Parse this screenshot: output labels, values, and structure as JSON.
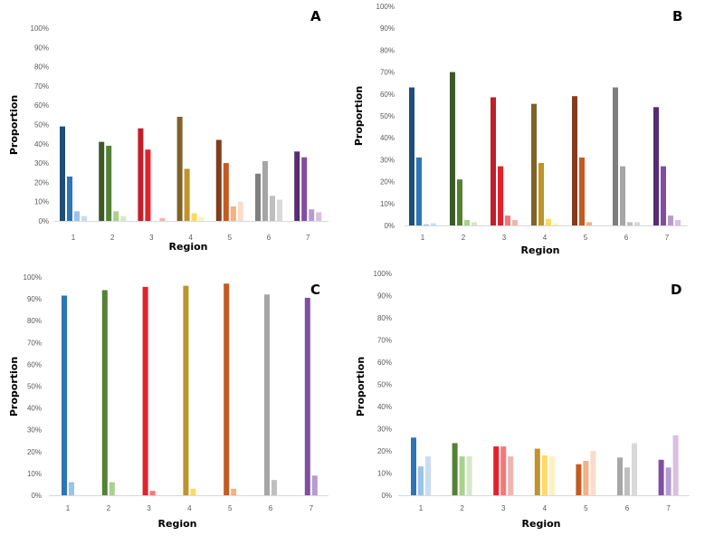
{
  "chart_data": [
    {
      "type": "bar",
      "panel_label": "A",
      "xlabel": "Region",
      "ylabel": "Proportion",
      "ylim": [
        0,
        100
      ],
      "yticks": [
        "0%",
        "10%",
        "20%",
        "30%",
        "40%",
        "50%",
        "60%",
        "70%",
        "80%",
        "90%",
        "100%"
      ],
      "categories": [
        "1",
        "2",
        "3",
        "4",
        "5",
        "6",
        "7"
      ],
      "values": [
        [
          49,
          23,
          5,
          2.5
        ],
        [
          41,
          39,
          5,
          2.5
        ],
        [
          48,
          37,
          0,
          1.5
        ],
        [
          54,
          27,
          4,
          2
        ],
        [
          42,
          30,
          7.5,
          10
        ],
        [
          24.5,
          31,
          13,
          11
        ],
        [
          36,
          33,
          6,
          4.5
        ]
      ],
      "shade_levels": [
        0,
        1,
        2,
        3
      ],
      "grid": false
    },
    {
      "type": "bar",
      "panel_label": "B",
      "xlabel": "Region",
      "ylabel": "Proportion",
      "ylim": [
        0,
        100
      ],
      "yticks": [
        "0%",
        "10%",
        "20%",
        "30%",
        "40%",
        "50%",
        "60%",
        "70%",
        "80%",
        "90%",
        "100%"
      ],
      "categories": [
        "1",
        "2",
        "3",
        "4",
        "5",
        "6",
        "7"
      ],
      "values": [
        [
          63,
          31,
          0.5,
          1
        ],
        [
          70,
          21,
          2.5,
          1.5
        ],
        [
          58.5,
          27,
          4.5,
          2.5
        ],
        [
          55.5,
          28.5,
          3,
          1
        ],
        [
          59,
          31,
          1.5,
          0
        ],
        [
          63,
          27,
          1.5,
          1.5
        ],
        [
          54,
          27,
          4.5,
          2.5
        ]
      ],
      "shade_levels": [
        0,
        1,
        2,
        3
      ],
      "grid": false
    },
    {
      "type": "bar",
      "panel_label": "C",
      "xlabel": "Region",
      "ylabel": "Proportion",
      "ylim": [
        0,
        100
      ],
      "yticks": [
        "0%",
        "10%",
        "20%",
        "30%",
        "40%",
        "50%",
        "60%",
        "70%",
        "80%",
        "90%",
        "100%"
      ],
      "categories": [
        "1",
        "2",
        "3",
        "4",
        "5",
        "6",
        "7"
      ],
      "values": [
        [
          91.5,
          6
        ],
        [
          94,
          6
        ],
        [
          95.5,
          2
        ],
        [
          96,
          3
        ],
        [
          97,
          3
        ],
        [
          92,
          7
        ],
        [
          90.5,
          9
        ]
      ],
      "shade_levels": [
        1,
        2
      ],
      "grid": false
    },
    {
      "type": "bar",
      "panel_label": "D",
      "xlabel": "Region",
      "ylabel": "Proportion",
      "ylim": [
        0,
        100
      ],
      "yticks": [
        "0%",
        "10%",
        "20%",
        "30%",
        "40%",
        "50%",
        "60%",
        "70%",
        "80%",
        "90%",
        "100%"
      ],
      "categories": [
        "1",
        "2",
        "3",
        "4",
        "5",
        "6",
        "7"
      ],
      "values": [
        [
          26,
          13,
          17.5
        ],
        [
          23.5,
          17.5,
          17.5
        ],
        [
          22,
          22,
          17.5
        ],
        [
          21,
          18,
          17.5
        ],
        [
          14,
          15.5,
          20
        ],
        [
          17,
          12.5,
          23.5
        ],
        [
          16,
          12.5,
          27
        ]
      ],
      "shade_levels": [
        1,
        2,
        3
      ],
      "grid": false
    }
  ],
  "region_colors": [
    [
      "#1f4e79",
      "#2e75b6",
      "#9dc3e6",
      "#c9ddf2"
    ],
    [
      "#3b5a28",
      "#548235",
      "#a9d18e",
      "#d5e8c8"
    ],
    [
      "#c0202a",
      "#e4202a",
      "#f4777a",
      "#efb5b0"
    ],
    [
      "#7f6228",
      "#bf952a",
      "#ffd966",
      "#fff0c0"
    ],
    [
      "#843c1c",
      "#c55a22",
      "#f4b183",
      "#fbdccb"
    ],
    [
      "#7f7f7f",
      "#a6a6a6",
      "#bfbfbf",
      "#d9d9d9"
    ],
    [
      "#582c74",
      "#7f4ea3",
      "#b59ccf",
      "#d9bfe0"
    ]
  ]
}
